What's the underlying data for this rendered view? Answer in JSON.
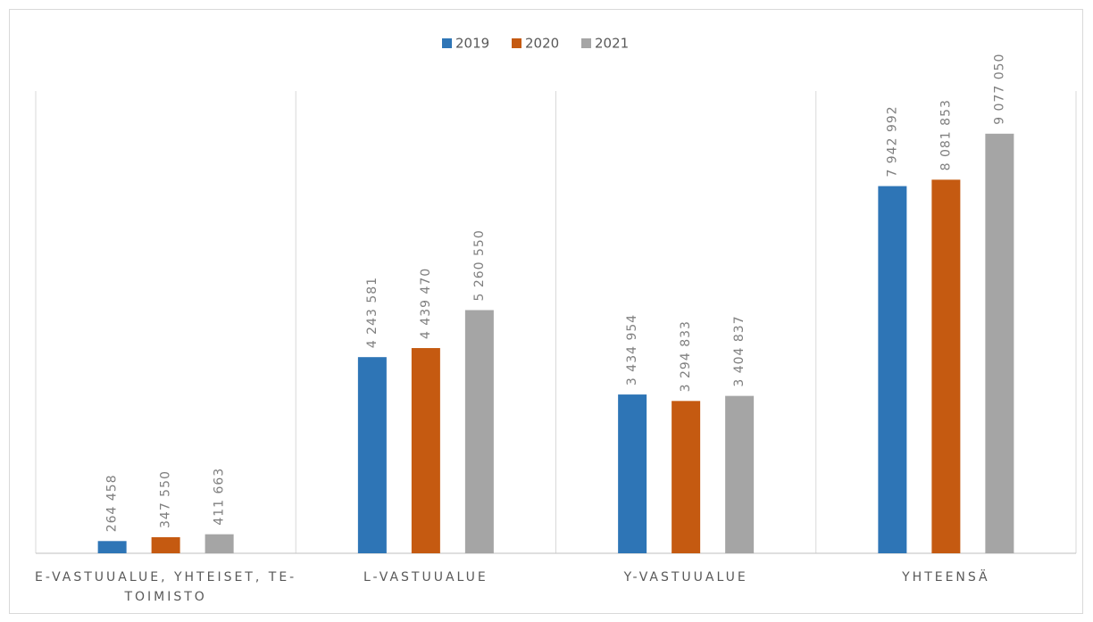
{
  "chart_data": {
    "type": "bar",
    "categories": [
      "E-VASTUUALUE, YHTEISET, TE-TOIMISTO",
      "L-VASTUUALUE",
      "Y-VASTUUALUE",
      "YHTEENSÄ"
    ],
    "series": [
      {
        "name": "2019",
        "color": "#2e75b6",
        "values": [
          264458,
          4243581,
          3434954,
          7942992
        ],
        "value_labels": [
          "264 458",
          "4 243 581",
          "3 434 954",
          "7 942 992"
        ]
      },
      {
        "name": "2020",
        "color": "#c55a11",
        "values": [
          347550,
          4439470,
          3294833,
          8081853
        ],
        "value_labels": [
          "347 550",
          "4 439 470",
          "3 294 833",
          "8 081 853"
        ]
      },
      {
        "name": "2021",
        "color": "#a5a5a5",
        "values": [
          411663,
          5260550,
          3404837,
          9077050
        ],
        "value_labels": [
          "411 663",
          "5 260 550",
          "3 404 837",
          "9 077 050"
        ]
      }
    ],
    "ylim": [
      0,
      10000000
    ],
    "legend": "top"
  }
}
